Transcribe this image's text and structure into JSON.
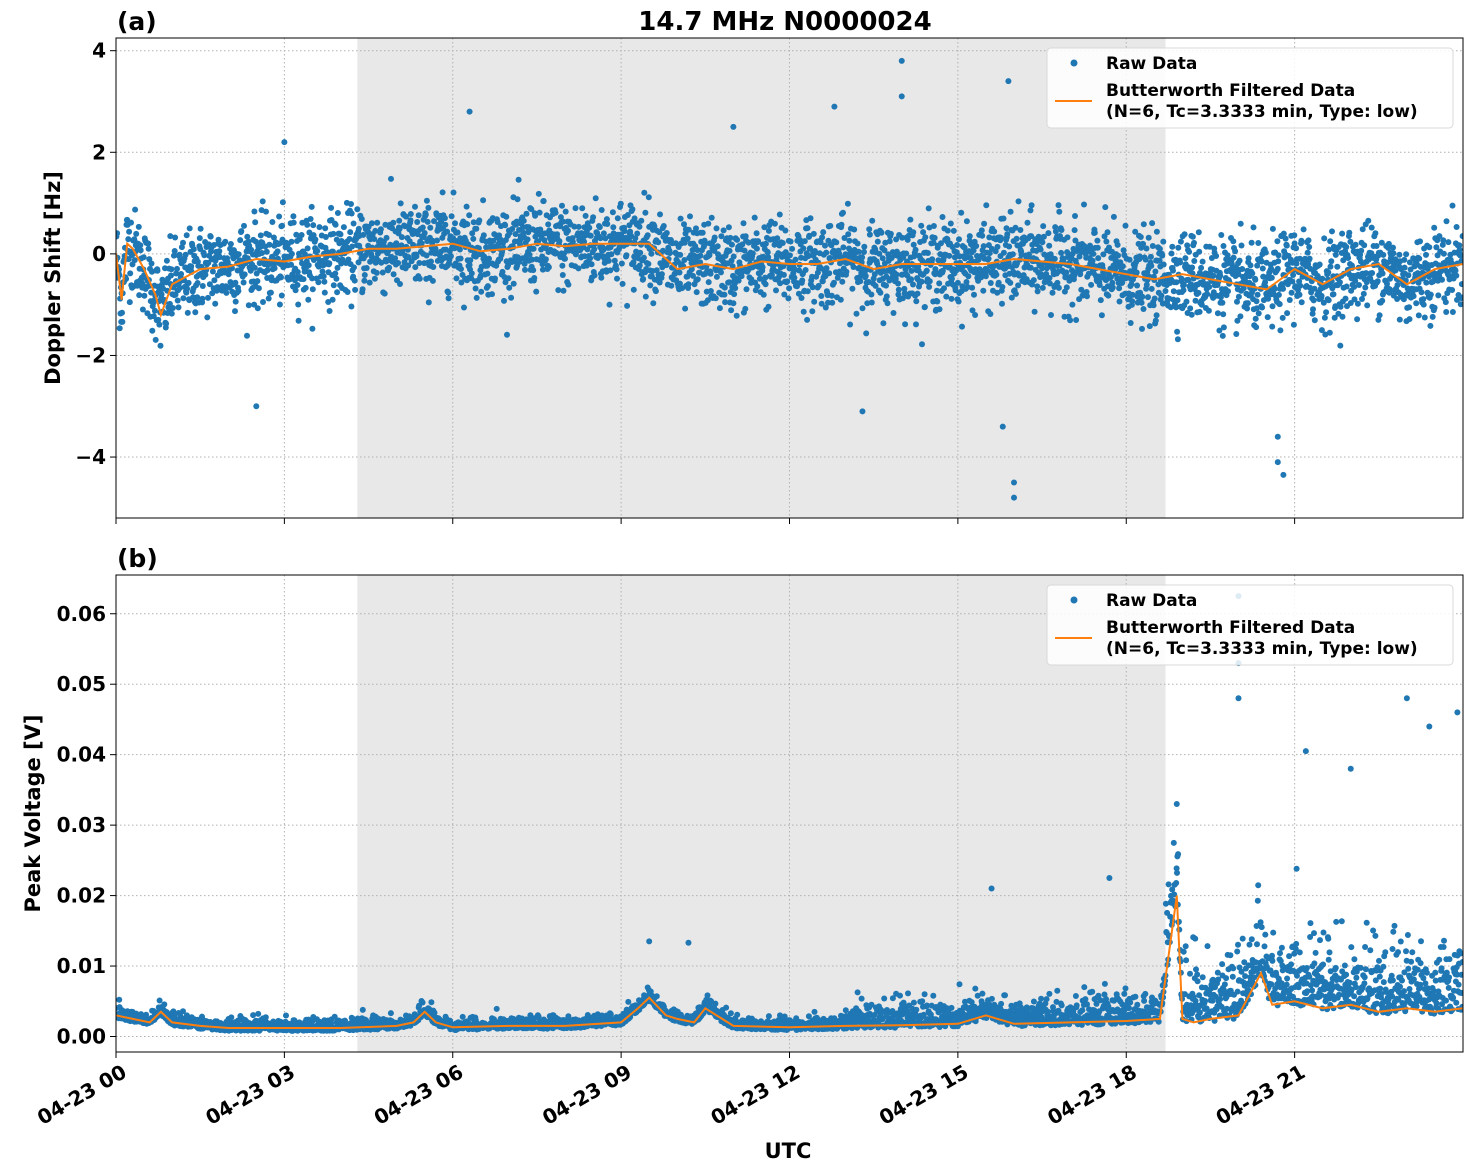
{
  "figure": {
    "title": "14.7 MHz N0000024",
    "xlabel": "UTC"
  },
  "colors": {
    "raw": "#1f77b4",
    "filtered": "#ff7f0e",
    "shade": "#e8e8e8",
    "grid": "#b0b0b0"
  },
  "chart_data": [
    {
      "type": "scatter",
      "panel_label": "(a)",
      "ylabel": "Doppler Shift [Hz]",
      "xlim_hours": [
        0,
        24
      ],
      "ylim": [
        -5.2,
        4.25
      ],
      "yticks": [
        -4,
        -2,
        0,
        2,
        4
      ],
      "ytick_labels": [
        "−4",
        "−2",
        "0",
        "2",
        "4"
      ],
      "xticks_hours": [
        0,
        3,
        6,
        9,
        12,
        15,
        18,
        21
      ],
      "xtick_labels": [
        "04-23 00",
        "04-23 03",
        "04-23 06",
        "04-23 09",
        "04-23 12",
        "04-23 15",
        "04-23 18",
        "04-23 21"
      ],
      "shaded_interval_hours": [
        4.3,
        18.7
      ],
      "grid": true,
      "legend": {
        "placement": "upper right",
        "entries": [
          {
            "label": "Raw Data",
            "kind": "marker"
          },
          {
            "label": "Butterworth Filtered Data",
            "label2": "(N=6, Tc=3.3333 min, Type: low)",
            "kind": "line"
          }
        ]
      },
      "series": [
        {
          "name": "Butterworth Filtered Data",
          "kind": "line",
          "x_hours": [
            0,
            0.1,
            0.2,
            0.3,
            0.5,
            0.7,
            0.8,
            1.0,
            1.5,
            2.0,
            2.5,
            3.0,
            3.5,
            4.0,
            4.5,
            5.0,
            5.5,
            6.0,
            6.5,
            7.0,
            7.5,
            8.0,
            8.5,
            9.0,
            9.5,
            10.0,
            10.5,
            11.0,
            11.5,
            12.0,
            12.5,
            13.0,
            13.5,
            14.0,
            14.5,
            15.0,
            15.5,
            16.0,
            16.5,
            17.0,
            17.5,
            18.0,
            18.5,
            19.0,
            19.5,
            20.0,
            20.5,
            21.0,
            21.5,
            22.0,
            22.5,
            23.0,
            23.5,
            24.0
          ],
          "y": [
            0.0,
            -0.9,
            0.2,
            0.1,
            -0.3,
            -0.8,
            -1.2,
            -0.6,
            -0.3,
            -0.25,
            -0.1,
            -0.15,
            -0.05,
            0.0,
            0.1,
            0.1,
            0.15,
            0.2,
            0.05,
            0.1,
            0.2,
            0.15,
            0.2,
            0.2,
            0.2,
            -0.3,
            -0.2,
            -0.3,
            -0.15,
            -0.2,
            -0.2,
            -0.1,
            -0.3,
            -0.2,
            -0.2,
            -0.2,
            -0.2,
            -0.1,
            -0.15,
            -0.2,
            -0.3,
            -0.4,
            -0.5,
            -0.4,
            -0.5,
            -0.6,
            -0.7,
            -0.3,
            -0.6,
            -0.3,
            -0.2,
            -0.6,
            -0.3,
            -0.2
          ]
        },
        {
          "name": "Raw Data",
          "kind": "scatter",
          "typical_band_y": [
            -1.4,
            1.3
          ],
          "outliers": [
            {
              "x_hours": 2.5,
              "y": -3.0
            },
            {
              "x_hours": 14.0,
              "y": 3.8
            },
            {
              "x_hours": 14.0,
              "y": 3.1
            },
            {
              "x_hours": 15.9,
              "y": 3.4
            },
            {
              "x_hours": 16.0,
              "y": -4.5
            },
            {
              "x_hours": 16.0,
              "y": -4.8
            },
            {
              "x_hours": 12.8,
              "y": 2.9
            },
            {
              "x_hours": 6.3,
              "y": 2.8
            },
            {
              "x_hours": 20.7,
              "y": -4.1
            },
            {
              "x_hours": 20.8,
              "y": -4.35
            },
            {
              "x_hours": 20.7,
              "y": -3.6
            },
            {
              "x_hours": 13.3,
              "y": -3.1
            },
            {
              "x_hours": 15.8,
              "y": -3.4
            },
            {
              "x_hours": 11.0,
              "y": 2.5
            },
            {
              "x_hours": 3.0,
              "y": 2.2
            }
          ]
        }
      ]
    },
    {
      "type": "scatter",
      "panel_label": "(b)",
      "ylabel": "Peak Voltage [V]",
      "xlim_hours": [
        0,
        24
      ],
      "ylim": [
        -0.0022,
        0.0655
      ],
      "yticks": [
        0.0,
        0.01,
        0.02,
        0.03,
        0.04,
        0.05,
        0.06
      ],
      "ytick_labels": [
        "0.00",
        "0.01",
        "0.02",
        "0.03",
        "0.04",
        "0.05",
        "0.06"
      ],
      "xticks_hours": [
        0,
        3,
        6,
        9,
        12,
        15,
        18,
        21
      ],
      "xtick_labels": [
        "04-23 00",
        "04-23 03",
        "04-23 06",
        "04-23 09",
        "04-23 12",
        "04-23 15",
        "04-23 18",
        "04-23 21"
      ],
      "shaded_interval_hours": [
        4.3,
        18.7
      ],
      "grid": true,
      "legend": {
        "placement": "upper right",
        "entries": [
          {
            "label": "Raw Data",
            "kind": "marker"
          },
          {
            "label": "Butterworth Filtered Data",
            "label2": "(N=6, Tc=3.3333 min, Type: low)",
            "kind": "line"
          }
        ]
      },
      "series": [
        {
          "name": "Butterworth Filtered Data",
          "kind": "line",
          "x_hours": [
            0,
            0.3,
            0.6,
            0.8,
            1.0,
            1.5,
            2.0,
            3.0,
            4.0,
            5.0,
            5.3,
            5.5,
            5.7,
            6.0,
            7.0,
            8.0,
            9.0,
            9.3,
            9.5,
            9.8,
            10.0,
            10.3,
            10.5,
            11.0,
            12.0,
            13.0,
            14.0,
            15.0,
            15.5,
            16.0,
            17.0,
            18.0,
            18.6,
            18.9,
            19.0,
            19.2,
            19.5,
            20.0,
            20.2,
            20.4,
            20.6,
            21.0,
            21.5,
            22.0,
            22.5,
            23.0,
            23.5,
            24.0
          ],
          "y": [
            0.003,
            0.0025,
            0.002,
            0.0035,
            0.002,
            0.0015,
            0.0012,
            0.0012,
            0.0012,
            0.0015,
            0.002,
            0.0035,
            0.002,
            0.0013,
            0.0015,
            0.0015,
            0.002,
            0.004,
            0.0055,
            0.003,
            0.0025,
            0.002,
            0.004,
            0.0015,
            0.0013,
            0.0015,
            0.0016,
            0.0018,
            0.003,
            0.0018,
            0.002,
            0.0022,
            0.0025,
            0.02,
            0.0025,
            0.002,
            0.0025,
            0.003,
            0.006,
            0.009,
            0.0045,
            0.005,
            0.004,
            0.0045,
            0.0035,
            0.004,
            0.0035,
            0.004
          ]
        },
        {
          "name": "Raw Data",
          "kind": "scatter",
          "typical_band_y": [
            0.0008,
            0.006
          ],
          "outliers": [
            {
              "x_hours": 20.0,
              "y": 0.0625
            },
            {
              "x_hours": 20.0,
              "y": 0.053
            },
            {
              "x_hours": 20.0,
              "y": 0.048
            },
            {
              "x_hours": 23.0,
              "y": 0.048
            },
            {
              "x_hours": 23.9,
              "y": 0.046
            },
            {
              "x_hours": 21.2,
              "y": 0.0405
            },
            {
              "x_hours": 18.9,
              "y": 0.033
            },
            {
              "x_hours": 9.5,
              "y": 0.0135
            },
            {
              "x_hours": 10.2,
              "y": 0.0133
            },
            {
              "x_hours": 15.6,
              "y": 0.021
            },
            {
              "x_hours": 17.7,
              "y": 0.0225
            },
            {
              "x_hours": 22.0,
              "y": 0.038
            },
            {
              "x_hours": 23.4,
              "y": 0.044
            }
          ]
        }
      ]
    }
  ]
}
